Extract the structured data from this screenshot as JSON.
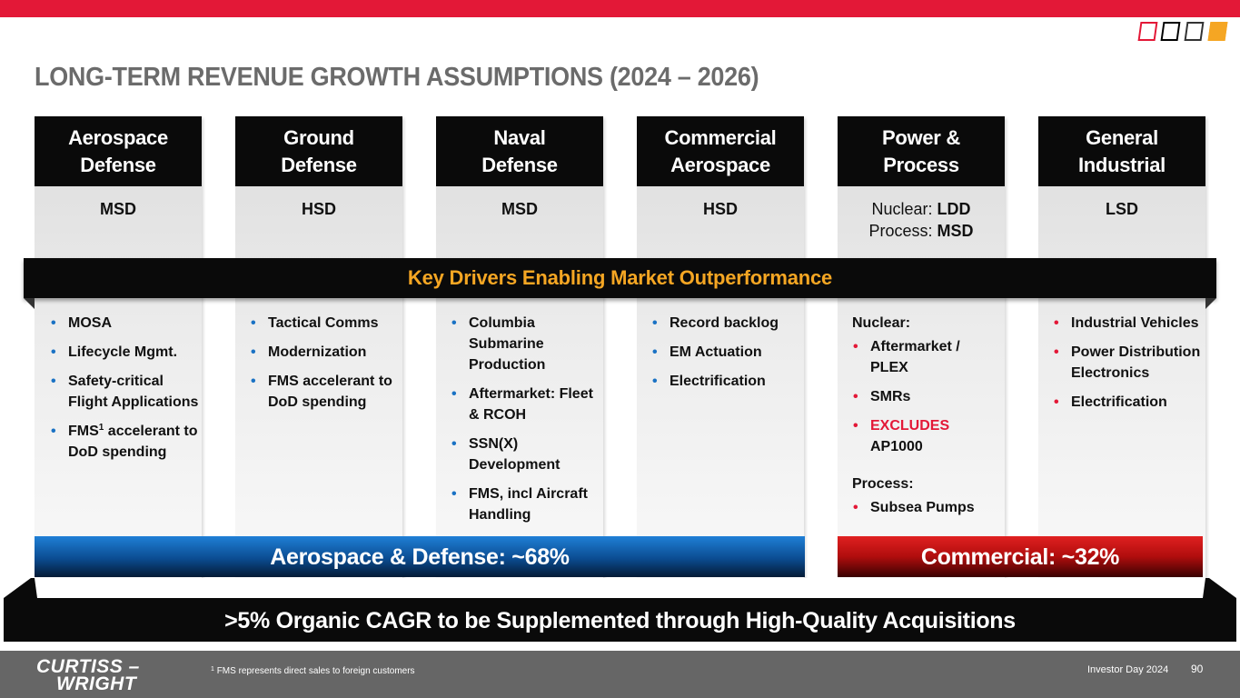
{
  "header": {
    "title": "LONG-TERM REVENUE GROWTH ASSUMPTIONS (2024 – 2026)",
    "colors": {
      "accent_red": "#e31837",
      "accent_orange": "#f5a623",
      "bullet_blue": "#1a72c4"
    }
  },
  "columns": [
    {
      "title_line1": "Aerospace",
      "title_line2": "Defense",
      "rate": "MSD",
      "bullets": [
        "MOSA",
        "Lifecycle Mgmt.",
        "Safety-critical Flight Applications",
        "FMS",
        "accelerant to DoD spending"
      ],
      "fms_sup": "1"
    },
    {
      "title_line1": "Ground",
      "title_line2": "Defense",
      "rate": "HSD",
      "bullets": [
        "Tactical Comms",
        "Modernization",
        "FMS accelerant to DoD spending"
      ]
    },
    {
      "title_line1": "Naval",
      "title_line2": "Defense",
      "rate": "MSD",
      "bullets": [
        "Columbia Submarine Production",
        "Aftermarket: Fleet & RCOH",
        "SSN(X) Development",
        "FMS, incl Aircraft Handling"
      ]
    },
    {
      "title_line1": "Commercial",
      "title_line2": "Aerospace",
      "rate": "HSD",
      "bullets": [
        "Record backlog",
        "EM Actuation",
        "Electrification"
      ]
    },
    {
      "title_line1": "Power &",
      "title_line2": "Process",
      "rate_nuclear_label": "Nuclear:",
      "rate_nuclear_value": "LDD",
      "rate_process_label": "Process:",
      "rate_process_value": "MSD",
      "nuclear_heading": "Nuclear:",
      "nuclear_bullets": [
        "Aftermarket / PLEX",
        "SMRs"
      ],
      "excludes_label": "EXCLUDES",
      "excludes_item": "AP1000",
      "process_heading": "Process:",
      "process_bullets": [
        "Subsea Pumps"
      ]
    },
    {
      "title_line1": "General",
      "title_line2": "Industrial",
      "rate": "LSD",
      "bullets": [
        "Industrial Vehicles",
        "Power Distribution Electronics",
        "Electrification"
      ]
    }
  ],
  "drivers_band": {
    "title": "Key Drivers Enabling Market Outperformance"
  },
  "segments": {
    "aerospace_defense": "Aerospace & Defense: ~68%",
    "commercial": "Commercial: ~32%"
  },
  "cagr_band": {
    "text": ">5% Organic CAGR to be Supplemented through High-Quality Acquisitions"
  },
  "footer": {
    "brand_line1": "CURTISS –",
    "brand_line2": "WRIGHT",
    "footnote_sup": "1",
    "footnote": "FMS represents direct sales to foreign customers",
    "event": "Investor Day 2024",
    "page_number": "90"
  }
}
